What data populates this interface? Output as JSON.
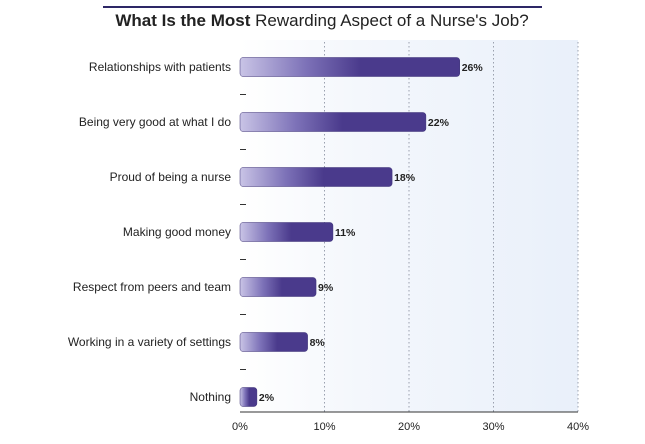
{
  "chart_data": {
    "type": "bar",
    "orientation": "horizontal",
    "title": {
      "bold_part": "What Is the Most",
      "regular_part": "Rewarding Aspect of a Nurse's Job?"
    },
    "categories": [
      "Relationships with patients",
      "Being very good at what I do",
      "Proud of being a nurse",
      "Making good money",
      "Respect from peers and team",
      "Working in a variety of settings",
      "Nothing"
    ],
    "values": [
      26,
      22,
      18,
      11,
      9,
      8,
      2
    ],
    "value_labels": [
      "26%",
      "22%",
      "18%",
      "11%",
      "9%",
      "8%",
      "2%"
    ],
    "xlim": [
      0,
      40
    ],
    "x_ticks": [
      0,
      10,
      20,
      30,
      40
    ],
    "x_tick_labels": [
      "0%",
      "10%",
      "20%",
      "30%",
      "40%"
    ],
    "grid": true,
    "colors": {
      "bar": "#4a3a8c",
      "bar_light": "#c9c4e6",
      "plot_background": "#eef3fb",
      "title_rule": "#2d2766",
      "text": "#222222",
      "grid": "#9aa0ae"
    }
  }
}
